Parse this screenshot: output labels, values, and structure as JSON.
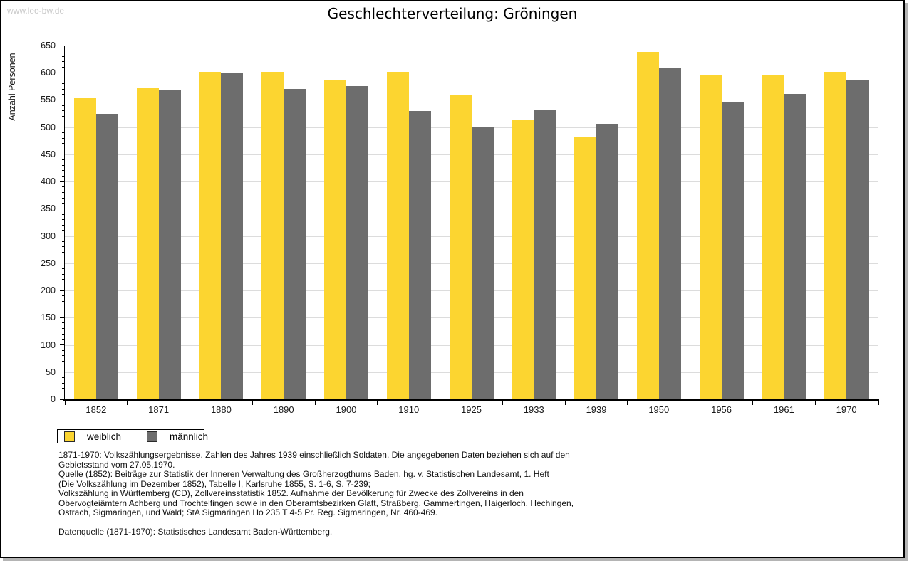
{
  "watermark": "www.leo-bw.de",
  "title": "Geschlechterverteilung: Gröningen",
  "chart_data": {
    "type": "bar",
    "title": "Geschlechterverteilung: Gröningen",
    "ylabel": "Anzahl Personen",
    "xlabel": "",
    "categories": [
      "1852",
      "1871",
      "1880",
      "1890",
      "1900",
      "1910",
      "1925",
      "1933",
      "1939",
      "1950",
      "1956",
      "1961",
      "1970"
    ],
    "series": [
      {
        "name": "weiblich",
        "color": "#fcd530",
        "values": [
          554,
          571,
          601,
          601,
          587,
          601,
          559,
          513,
          482,
          638,
          597,
          596,
          602
        ]
      },
      {
        "name": "männlich",
        "color": "#6d6d6d",
        "values": [
          525,
          568,
          599,
          570,
          575,
          530,
          500,
          531,
          506,
          610,
          547,
          561,
          586
        ]
      }
    ],
    "ylim": [
      0,
      650
    ],
    "yticks": [
      0,
      50,
      100,
      150,
      200,
      250,
      300,
      350,
      400,
      450,
      500,
      550,
      600,
      650
    ],
    "minor_tick_step": 10,
    "grid": true,
    "legend_position": "bottom-left"
  },
  "footnotes": {
    "lines": [
      "1871-1970: Volkszählungsergebnisse. Zahlen des Jahres 1939 einschließlich Soldaten. Die angegebenen Daten beziehen sich auf den",
      "Gebietsstand vom 27.05.1970.",
      "Quelle (1852): Beiträge zur Statistik der Inneren Verwaltung des Großherzogthums Baden, hg. v. Statistischen Landesamt, 1. Heft",
      "(Die Volkszählung im Dezember 1852), Tabelle I, Karlsruhe 1855, S. 1-6, S. 7-239;",
      "Volkszählung in Württemberg (CD), Zollvereinsstatistik 1852. Aufnahme der Bevölkerung für Zwecke des Zollvereins in den",
      "Obervogteiämtern Achberg und Trochtelfingen sowie in den Oberamtsbezirken Glatt, Straßberg, Gammertingen, Haigerloch, Hechingen,",
      "Ostrach, Sigmaringen, und Wald; StA Sigmaringen Ho 235 T 4-5 Pr. Reg. Sigmaringen, Nr. 460-469."
    ],
    "datasource": "Datenquelle (1871-1970): Statistisches Landesamt Baden-Württemberg."
  }
}
